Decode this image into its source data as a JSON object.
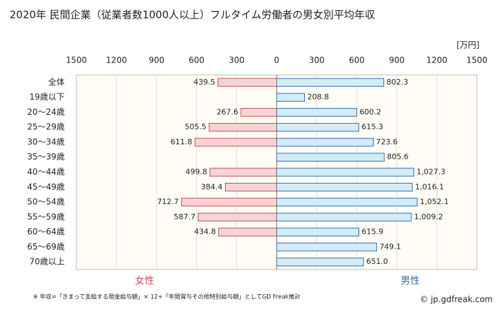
{
  "chart_data": {
    "type": "butterfly-bar",
    "title": "2020年 民間企業（従業者数1000人以上）フルタイム労働者の男女別平均年収",
    "unit": "[万円]",
    "categories": [
      "全体",
      "19歳以下",
      "20〜24歳",
      "25〜29歳",
      "30〜34歳",
      "35〜39歳",
      "40〜44歳",
      "45〜49歳",
      "50〜54歳",
      "55〜59歳",
      "60〜64歳",
      "65〜69歳",
      "70歳以上"
    ],
    "series": [
      {
        "name": "女性",
        "side": "left",
        "color": "#f8d3d3",
        "edge": "#c0504d",
        "label_color": "#c0504d",
        "values": [
          439.5,
          null,
          267.6,
          505.5,
          611.8,
          null,
          499.8,
          384.4,
          712.7,
          587.7,
          434.8,
          null,
          null
        ],
        "value_labels": [
          "439.5",
          null,
          "267.6",
          "505.5",
          "611.8",
          null,
          "499.8",
          "384.4",
          "712.7",
          "587.7",
          "434.8",
          null,
          null
        ]
      },
      {
        "name": "男性",
        "side": "right",
        "color": "#d3ecf8",
        "edge": "#2f6faf",
        "label_color": "#2f6faf",
        "values": [
          802.3,
          208.8,
          600.2,
          615.3,
          723.6,
          805.6,
          1027.3,
          1016.1,
          1052.1,
          1009.2,
          615.9,
          749.1,
          651.0
        ],
        "value_labels": [
          "802.3",
          "208.8",
          "600.2",
          "615.3",
          "723.6",
          "805.6",
          "1,027.3",
          "1,016.1",
          "1,052.1",
          "1,009.2",
          "615.9",
          "749.1",
          "651.0"
        ]
      }
    ],
    "xlim": [
      0,
      1500
    ],
    "xticks": [
      0,
      300,
      600,
      900,
      1200,
      1500
    ],
    "grid": true,
    "footnote": "※ 年収=「きまって支給する現金給与額」× 12+「年間賞与その他特別給与額」としてGD Freak推計",
    "source": "© jp.gdfreak.com"
  }
}
